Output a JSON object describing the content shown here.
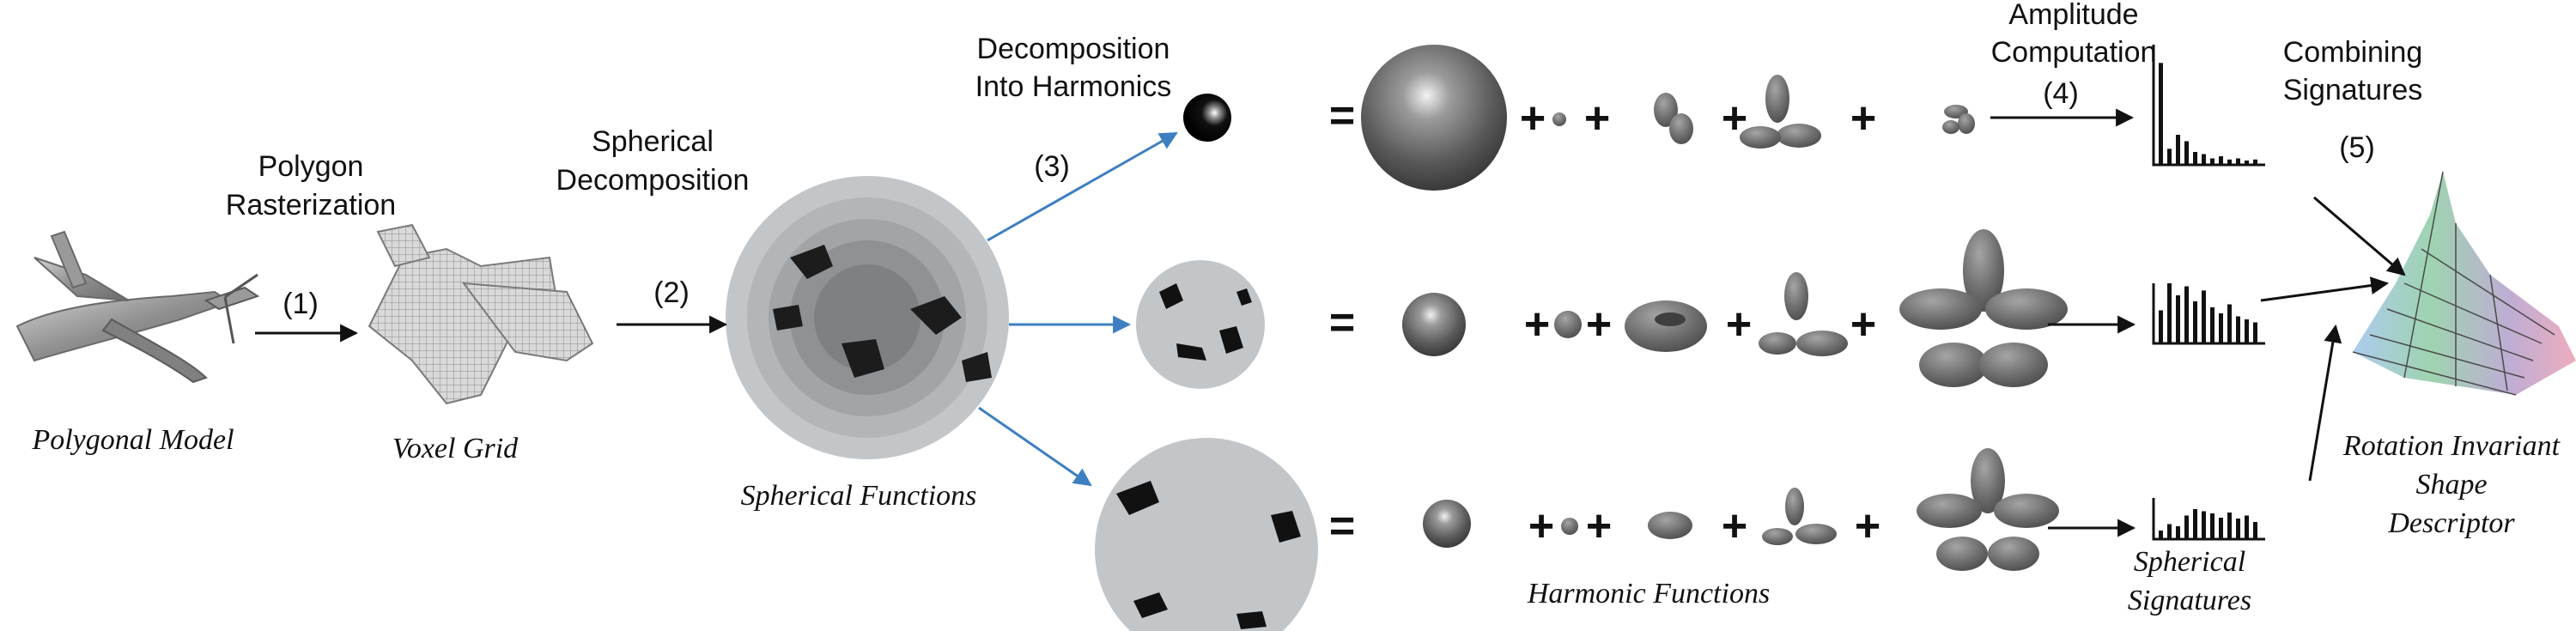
{
  "steps": {
    "rasterization": {
      "line1": "Polygon",
      "line2": "Rasterization",
      "number": "(1)"
    },
    "spherical_decomposition": {
      "line1": "Spherical",
      "line2": "Decomposition",
      "number": "(2)"
    },
    "harmonic_decomposition": {
      "line1": "Decomposition",
      "line2": "Into Harmonics",
      "number": "(3)"
    },
    "amplitude": {
      "line1": "Amplitude",
      "line2": "Computation",
      "number": "(4)"
    },
    "combining": {
      "line1": "Combining",
      "line2": "Signatures",
      "number": "(5)"
    }
  },
  "captions": {
    "polygonal_model": "Polygonal Model",
    "voxel_grid": "Voxel Grid",
    "spherical_functions": "Spherical Functions",
    "harmonic_functions": "Harmonic Functions",
    "spherical_signatures_1": "Spherical",
    "spherical_signatures_2": "Signatures",
    "descriptor_1": "Rotation Invariant",
    "descriptor_2": "Shape",
    "descriptor_3": "Descriptor"
  },
  "symbols": {
    "equals": "=",
    "plus": "+"
  },
  "signatures": {
    "row1": [
      0.95,
      0.15,
      0.28,
      0.22,
      0.12,
      0.1,
      0.06,
      0.08,
      0.05,
      0.06,
      0.04,
      0.05
    ],
    "row2": [
      0.55,
      1.0,
      0.8,
      0.95,
      0.7,
      0.88,
      0.6,
      0.5,
      0.65,
      0.45,
      0.4,
      0.35
    ],
    "row3": [
      0.2,
      0.35,
      0.3,
      0.55,
      0.7,
      0.65,
      0.6,
      0.5,
      0.62,
      0.48,
      0.55,
      0.4
    ]
  },
  "colors": {
    "gray_shape": "#6a6a6a",
    "sphere_disc": "#c3c6c9",
    "arrow_blue": "#3d7fc1",
    "ink": "#111111"
  }
}
